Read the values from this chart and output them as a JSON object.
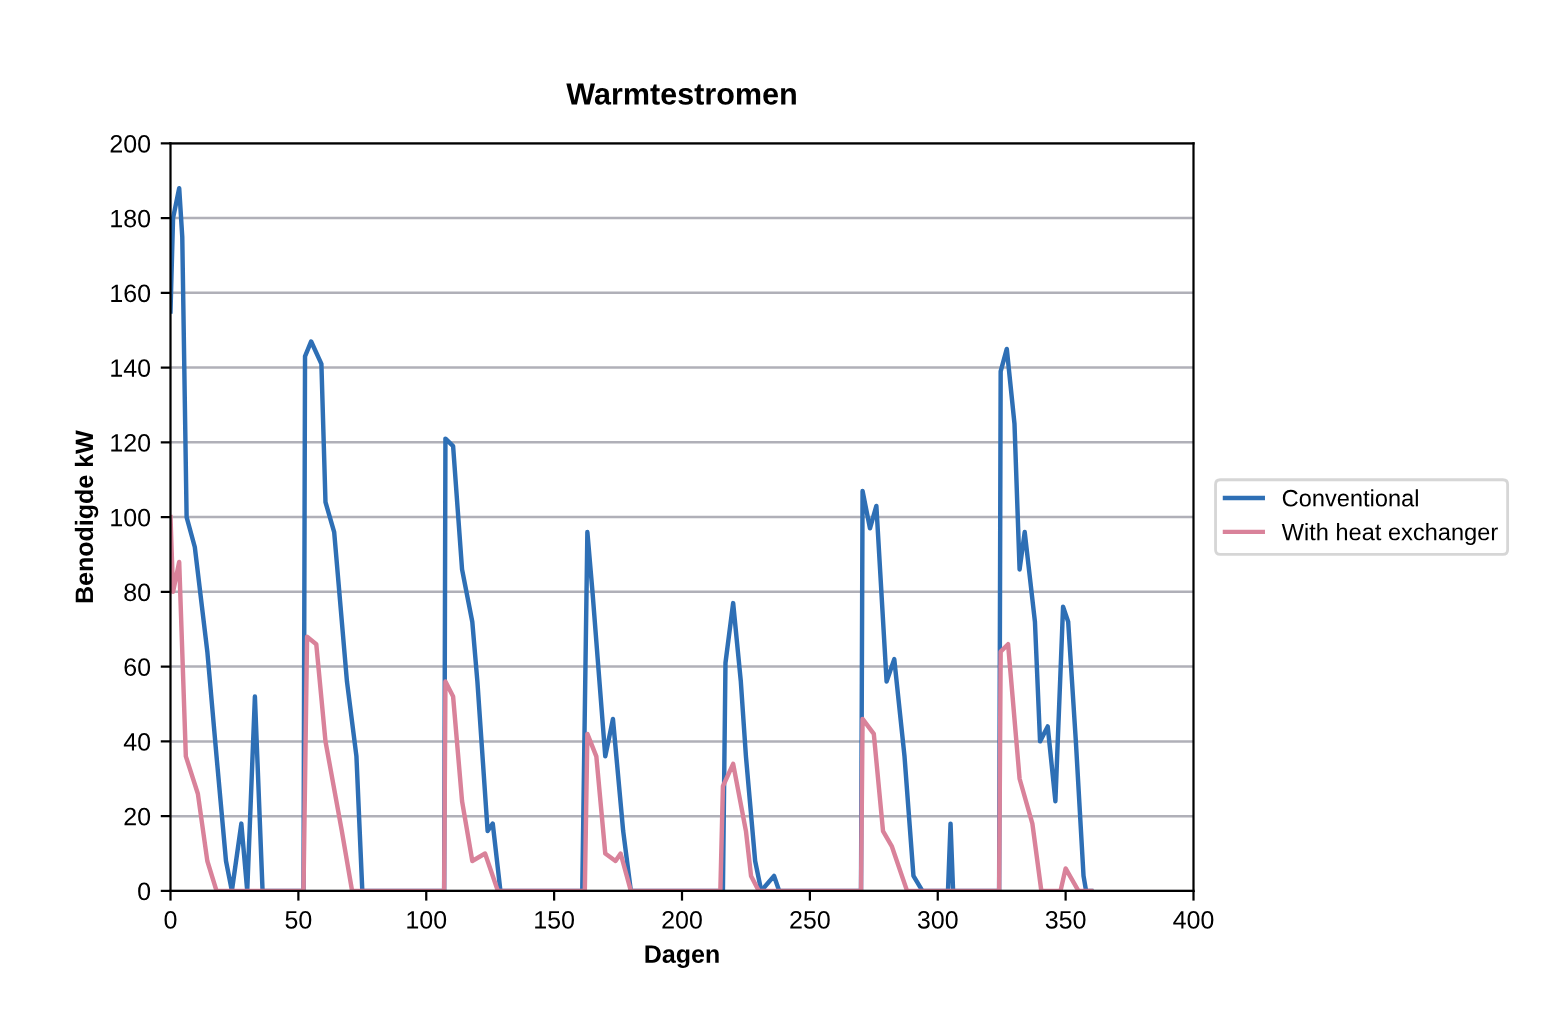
{
  "chart_data": {
    "type": "line",
    "title": "Warmtestromen",
    "xlabel": "Dagen",
    "ylabel": "Benodigde kW",
    "xlim": [
      0,
      400
    ],
    "xticks": [
      0,
      50,
      100,
      150,
      200,
      250,
      300,
      350,
      400
    ],
    "ylim": [
      0,
      200
    ],
    "yticks": [
      0,
      20,
      40,
      60,
      80,
      100,
      120,
      140,
      160,
      180,
      200
    ],
    "grid": "y",
    "legend": "right",
    "marker": "none",
    "line_style": "solid",
    "series": [
      {
        "name": "Conventional",
        "color": "#2e6fb5",
        "x": [
          0,
          1,
          3.4,
          4.6,
          6.3,
          9.5,
          14.4,
          18,
          21.7,
          24,
          27.7,
          30,
          33,
          36,
          52,
          52.6,
          55,
          59,
          60.6,
          64,
          69,
          72.7,
          75,
          107,
          107.5,
          110.5,
          114,
          118,
          120,
          124,
          126,
          129,
          161,
          163,
          165,
          170,
          173,
          177,
          180,
          216,
          217,
          220,
          223,
          225,
          228.6,
          231,
          236,
          238,
          270,
          270.6,
          273.5,
          276,
          280,
          283,
          287,
          290.5,
          294,
          304,
          305,
          306,
          324,
          324.6,
          327,
          330,
          332,
          334,
          338,
          340,
          343,
          346,
          349,
          351,
          354,
          357,
          358,
          360
        ],
        "values": [
          155,
          180,
          188,
          175,
          100,
          92,
          64,
          36,
          8,
          0,
          18,
          0,
          52,
          0,
          0,
          143,
          147,
          141,
          104,
          96,
          56,
          36,
          0,
          0,
          121,
          119,
          86,
          72,
          56,
          16,
          18,
          0,
          0,
          96,
          80,
          36,
          46,
          16,
          0,
          0,
          61,
          77,
          56,
          36,
          8,
          0,
          4,
          0,
          0,
          107,
          97,
          103,
          56,
          62,
          36,
          4,
          0,
          0,
          18,
          0,
          0,
          139,
          145,
          125,
          86,
          96,
          72,
          40,
          44,
          24,
          76,
          72,
          40,
          4,
          0,
          0
        ]
      },
      {
        "name": "With heat exchanger",
        "color": "#d9829a",
        "x": [
          0,
          1,
          3.4,
          6,
          10.7,
          14.4,
          18,
          52,
          53.4,
          57,
          60.6,
          67,
          71,
          107,
          107.5,
          110.5,
          114,
          118,
          123,
          128,
          162,
          163,
          166.5,
          170,
          174,
          176,
          180,
          215,
          216,
          220,
          225,
          227,
          230,
          270,
          270.6,
          275,
          278.6,
          282,
          288,
          324,
          324.6,
          327.5,
          332,
          337,
          340.5,
          348,
          350,
          355,
          360
        ],
        "values": [
          100,
          80,
          88,
          36,
          26,
          8,
          0,
          0,
          68,
          66,
          40,
          16,
          0,
          0,
          56,
          52,
          24,
          8,
          10,
          0,
          0,
          42,
          36,
          10,
          8,
          10,
          0,
          0,
          28,
          34,
          16,
          4,
          0,
          0,
          46,
          42,
          16,
          12,
          0,
          0,
          64,
          66,
          30,
          18,
          0,
          0,
          6,
          0,
          0
        ]
      }
    ]
  }
}
